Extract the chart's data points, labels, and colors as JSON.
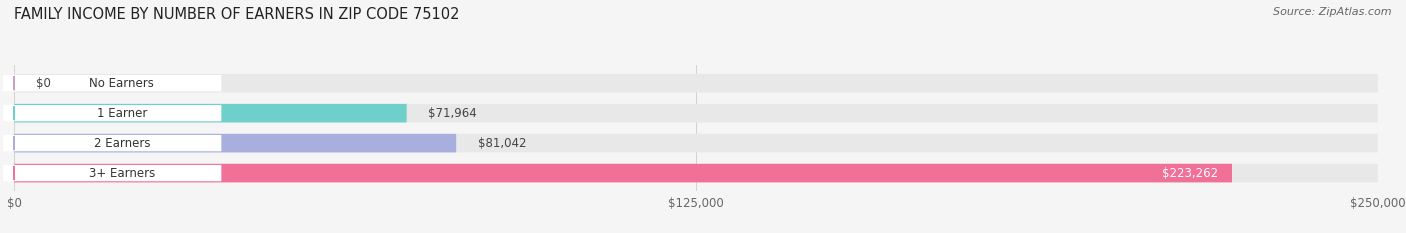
{
  "title": "FAMILY INCOME BY NUMBER OF EARNERS IN ZIP CODE 75102",
  "source": "Source: ZipAtlas.com",
  "categories": [
    "No Earners",
    "1 Earner",
    "2 Earners",
    "3+ Earners"
  ],
  "values": [
    0,
    71964,
    81042,
    223262
  ],
  "bar_colors": [
    "#c9a0c8",
    "#6ecfcb",
    "#a8aedd",
    "#f07098"
  ],
  "value_labels": [
    "$0",
    "$71,964",
    "$81,042",
    "$223,262"
  ],
  "x_tick_labels": [
    "$0",
    "$125,000",
    "$250,000"
  ],
  "x_tick_values": [
    0,
    125000,
    250000
  ],
  "xlim": [
    0,
    250000
  ],
  "title_fontsize": 10.5,
  "source_fontsize": 8,
  "label_fontsize": 8.5,
  "value_fontsize": 8.5,
  "background_color": "#f5f5f5",
  "bar_bg_color": "#e8e8e8",
  "figsize": [
    14.06,
    2.33
  ]
}
